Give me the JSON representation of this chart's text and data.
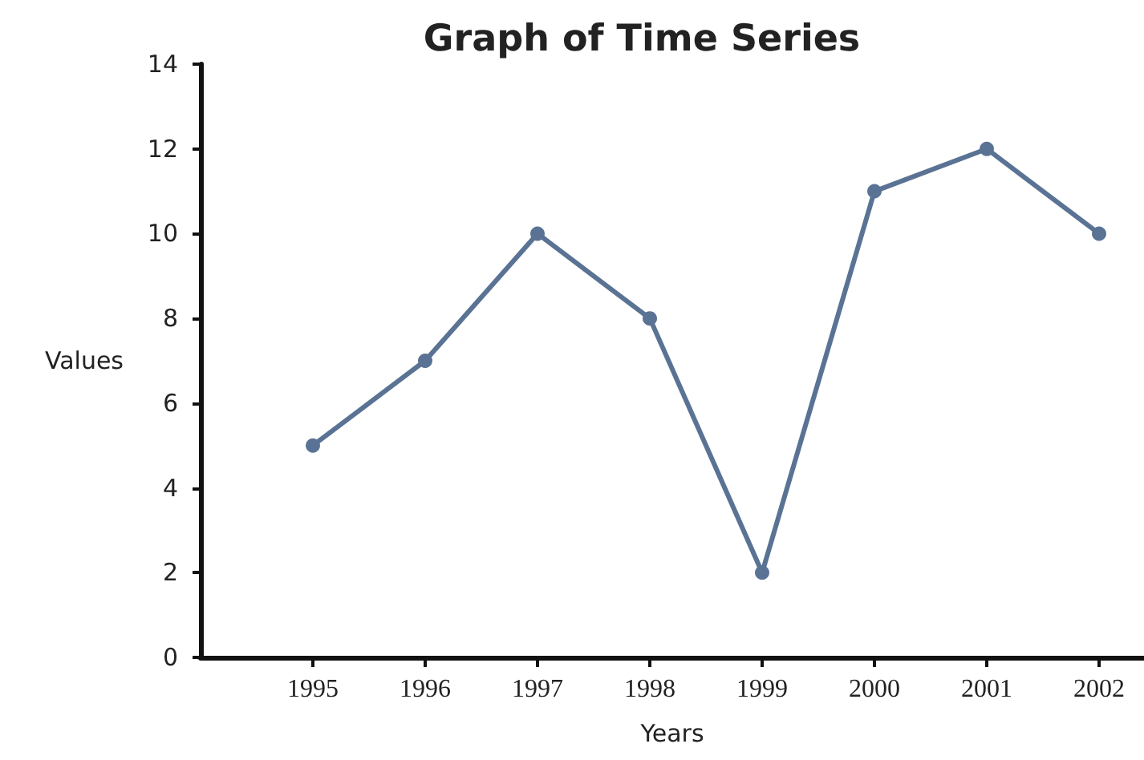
{
  "chart_data": {
    "type": "line",
    "title": "Graph of Time Series",
    "xlabel": "Years",
    "ylabel": "Values",
    "x": [
      1995,
      1996,
      1997,
      1998,
      1999,
      2000,
      2001,
      2002
    ],
    "series": [
      {
        "color": "#5a7394",
        "values": [
          5,
          7,
          10,
          8,
          2,
          11,
          12,
          10
        ]
      }
    ],
    "xlim": [
      1994,
      2002.4
    ],
    "xticks": [
      1995,
      1996,
      1997,
      1998,
      1999,
      2000,
      2001,
      2002
    ],
    "ylim": [
      0,
      14
    ],
    "yticks": [
      0,
      2,
      4,
      6,
      8,
      10,
      12,
      14
    ],
    "grid": false,
    "marker": "circle",
    "line_style": "solid"
  }
}
